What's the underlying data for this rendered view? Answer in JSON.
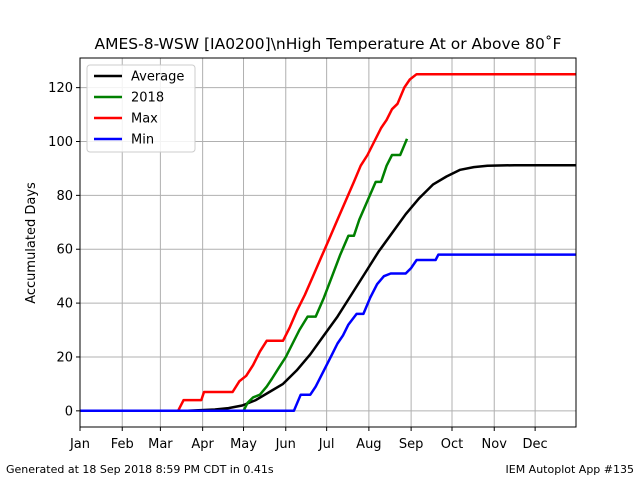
{
  "chart_data": {
    "type": "line",
    "title": "AMES-8-WSW [IA0200]\\nHigh Temperature At or Above 80˚F",
    "xlabel": "",
    "ylabel": "Accumulated Days",
    "x_unit": "day_of_year",
    "xlim": [
      1,
      365
    ],
    "ylim": [
      -6,
      131
    ],
    "yticks": [
      0,
      20,
      40,
      60,
      80,
      100,
      120
    ],
    "month_ticks": [
      {
        "day": 1,
        "label": "Jan"
      },
      {
        "day": 32,
        "label": "Feb"
      },
      {
        "day": 60,
        "label": "Mar"
      },
      {
        "day": 91,
        "label": "Apr"
      },
      {
        "day": 121,
        "label": "May"
      },
      {
        "day": 152,
        "label": "Jun"
      },
      {
        "day": 182,
        "label": "Jul"
      },
      {
        "day": 213,
        "label": "Aug"
      },
      {
        "day": 244,
        "label": "Sep"
      },
      {
        "day": 274,
        "label": "Oct"
      },
      {
        "day": 305,
        "label": "Nov"
      },
      {
        "day": 335,
        "label": "Dec"
      }
    ],
    "grid": true,
    "legend_position": "top-left",
    "series": [
      {
        "name": "Average",
        "color": "#000000",
        "points": [
          [
            1,
            0
          ],
          [
            80,
            0
          ],
          [
            100,
            0.5
          ],
          [
            110,
            1
          ],
          [
            120,
            2
          ],
          [
            130,
            4
          ],
          [
            140,
            7
          ],
          [
            150,
            10
          ],
          [
            160,
            15
          ],
          [
            170,
            21
          ],
          [
            180,
            28
          ],
          [
            190,
            35
          ],
          [
            200,
            43
          ],
          [
            210,
            51
          ],
          [
            220,
            59
          ],
          [
            230,
            66
          ],
          [
            240,
            73
          ],
          [
            250,
            79
          ],
          [
            260,
            84
          ],
          [
            270,
            87
          ],
          [
            280,
            89.5
          ],
          [
            290,
            90.5
          ],
          [
            300,
            91
          ],
          [
            320,
            91.2
          ],
          [
            365,
            91.2
          ]
        ]
      },
      {
        "name": "2018",
        "color": "#008000",
        "points": [
          [
            1,
            0
          ],
          [
            121,
            0
          ],
          [
            124,
            3
          ],
          [
            128,
            5
          ],
          [
            133,
            6
          ],
          [
            138,
            9
          ],
          [
            142,
            12
          ],
          [
            147,
            16
          ],
          [
            152,
            20
          ],
          [
            157,
            25
          ],
          [
            162,
            30
          ],
          [
            168,
            35
          ],
          [
            174,
            35
          ],
          [
            180,
            42
          ],
          [
            186,
            50
          ],
          [
            192,
            58
          ],
          [
            198,
            65
          ],
          [
            202,
            65
          ],
          [
            206,
            71
          ],
          [
            212,
            78
          ],
          [
            218,
            85
          ],
          [
            222,
            85
          ],
          [
            226,
            91
          ],
          [
            230,
            95
          ],
          [
            236,
            95
          ],
          [
            241,
            101
          ]
        ]
      },
      {
        "name": "Max",
        "color": "#ff0000",
        "points": [
          [
            1,
            0
          ],
          [
            73,
            0
          ],
          [
            77,
            4
          ],
          [
            90,
            4
          ],
          [
            92,
            7
          ],
          [
            113,
            7
          ],
          [
            118,
            11
          ],
          [
            123,
            13
          ],
          [
            128,
            17
          ],
          [
            133,
            22
          ],
          [
            138,
            26
          ],
          [
            150,
            26
          ],
          [
            155,
            31
          ],
          [
            160,
            37
          ],
          [
            166,
            43
          ],
          [
            172,
            50
          ],
          [
            178,
            57
          ],
          [
            184,
            64
          ],
          [
            190,
            71
          ],
          [
            196,
            78
          ],
          [
            202,
            85
          ],
          [
            207,
            91
          ],
          [
            212,
            95
          ],
          [
            217,
            100
          ],
          [
            222,
            105
          ],
          [
            226,
            108
          ],
          [
            230,
            112
          ],
          [
            234,
            114
          ],
          [
            239,
            120
          ],
          [
            243,
            123
          ],
          [
            248,
            125
          ],
          [
            365,
            125
          ]
        ]
      },
      {
        "name": "Min",
        "color": "#0000ff",
        "points": [
          [
            1,
            0
          ],
          [
            158,
            0
          ],
          [
            163,
            6
          ],
          [
            170,
            6
          ],
          [
            174,
            9
          ],
          [
            180,
            15
          ],
          [
            186,
            21
          ],
          [
            190,
            25
          ],
          [
            194,
            28
          ],
          [
            198,
            32
          ],
          [
            204,
            36
          ],
          [
            209,
            36
          ],
          [
            214,
            42
          ],
          [
            219,
            47
          ],
          [
            224,
            50
          ],
          [
            229,
            51
          ],
          [
            240,
            51
          ],
          [
            244,
            53
          ],
          [
            248,
            56
          ],
          [
            253,
            56
          ],
          [
            262,
            56
          ],
          [
            264,
            58
          ],
          [
            365,
            58
          ]
        ]
      }
    ]
  },
  "footer": {
    "left": "Generated at 18 Sep 2018 8:59 PM CDT in 0.41s",
    "right": "IEM Autoplot App #135"
  }
}
